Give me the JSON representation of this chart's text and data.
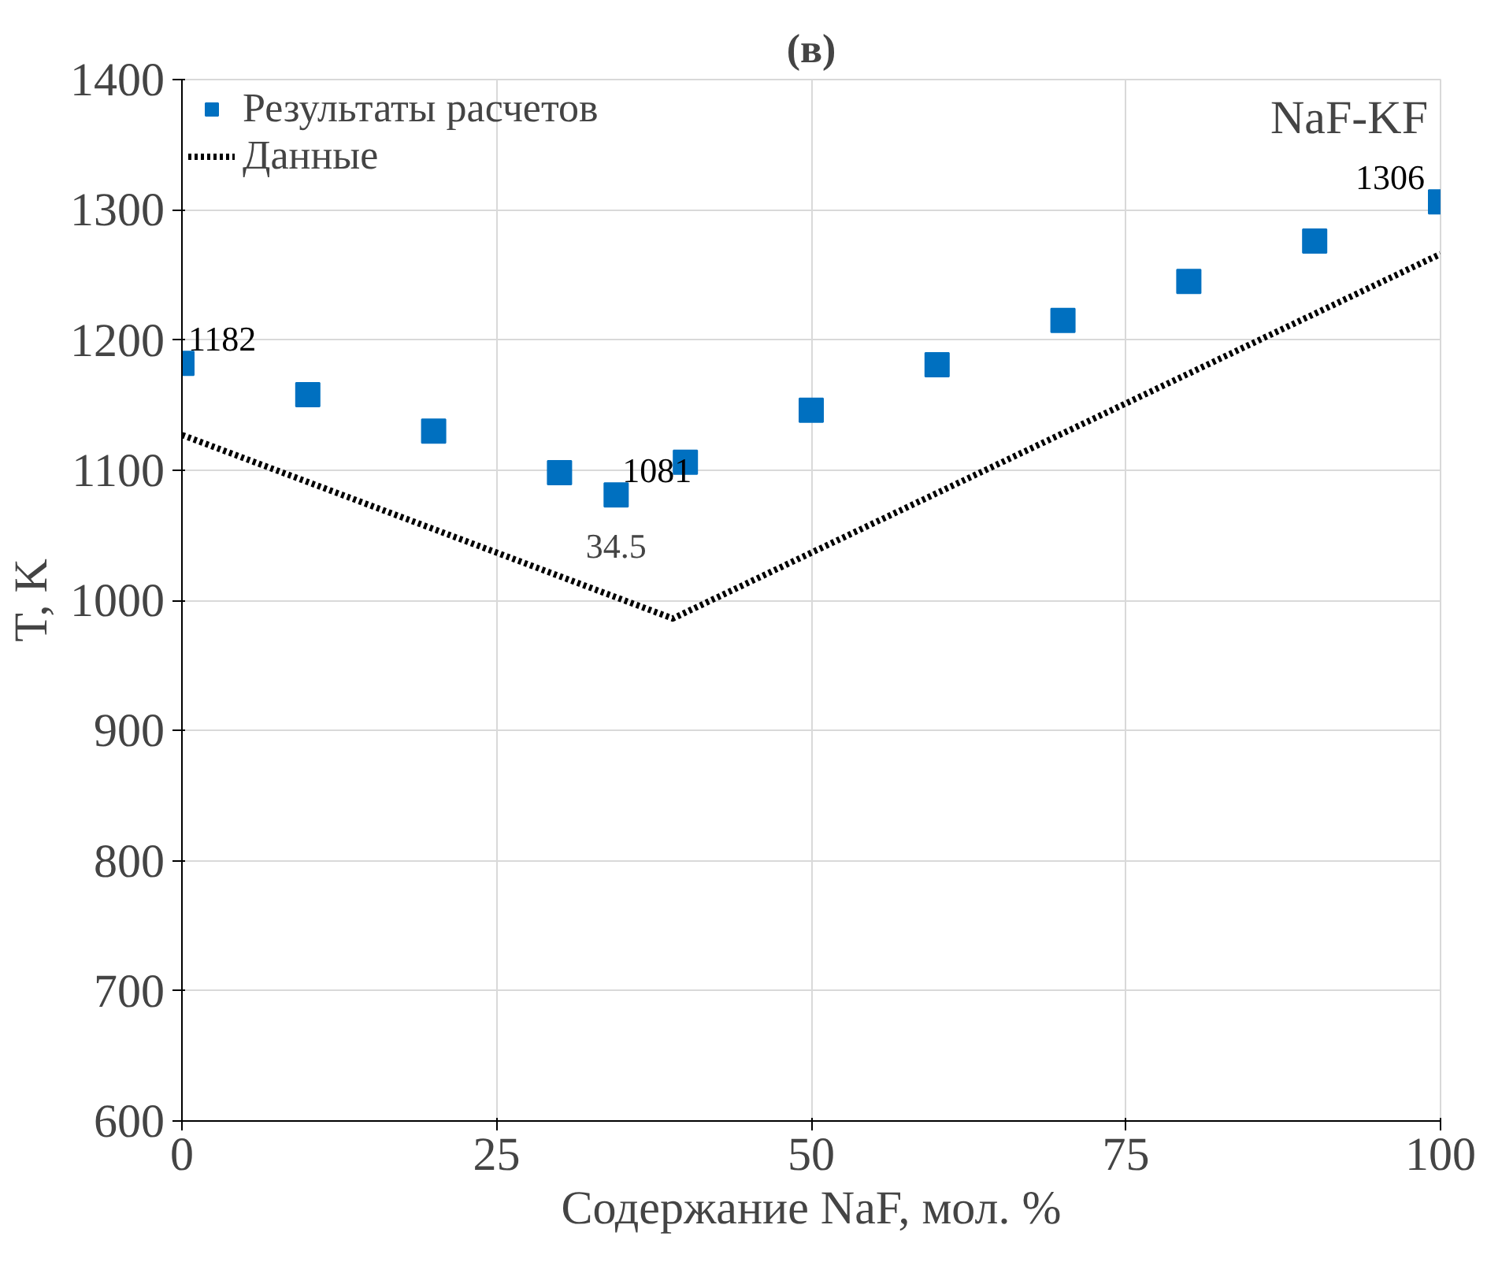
{
  "chart_data": {
    "type": "scatter",
    "title": "(в)",
    "xlabel": "Содержание NaF, мол. %",
    "ylabel": "T, K",
    "xlim": [
      0,
      100
    ],
    "xticks": [
      0,
      25,
      50,
      75,
      100
    ],
    "ylim": [
      600,
      1400
    ],
    "yticks": [
      600,
      700,
      800,
      900,
      1000,
      1100,
      1200,
      1300,
      1400
    ],
    "grid": true,
    "legend": "top left",
    "marker": "square",
    "series": [
      {
        "name": "Результаты расчетов",
        "color": "#0070c0",
        "x": [
          0,
          10,
          20,
          30,
          34.5,
          40,
          50,
          60,
          70,
          80,
          90,
          100
        ],
        "values": [
          1182,
          1158,
          1130,
          1098,
          1081,
          1106,
          1146,
          1181,
          1215,
          1245,
          1276,
          1306
        ],
        "value_labels": [
          "1182",
          null,
          null,
          null,
          "1081",
          null,
          null,
          null,
          null,
          null,
          null,
          "1306"
        ]
      },
      {
        "name": "Данные",
        "type": "line",
        "color": "#000000",
        "line_style": "dotted",
        "marker": "none",
        "x": [
          0,
          39,
          100
        ],
        "values": [
          1127,
          986,
          1266
        ]
      }
    ],
    "annotations": [
      "NaF-KF",
      {
        "text": "34.5",
        "x": 34.5,
        "y": 1081
      }
    ]
  }
}
